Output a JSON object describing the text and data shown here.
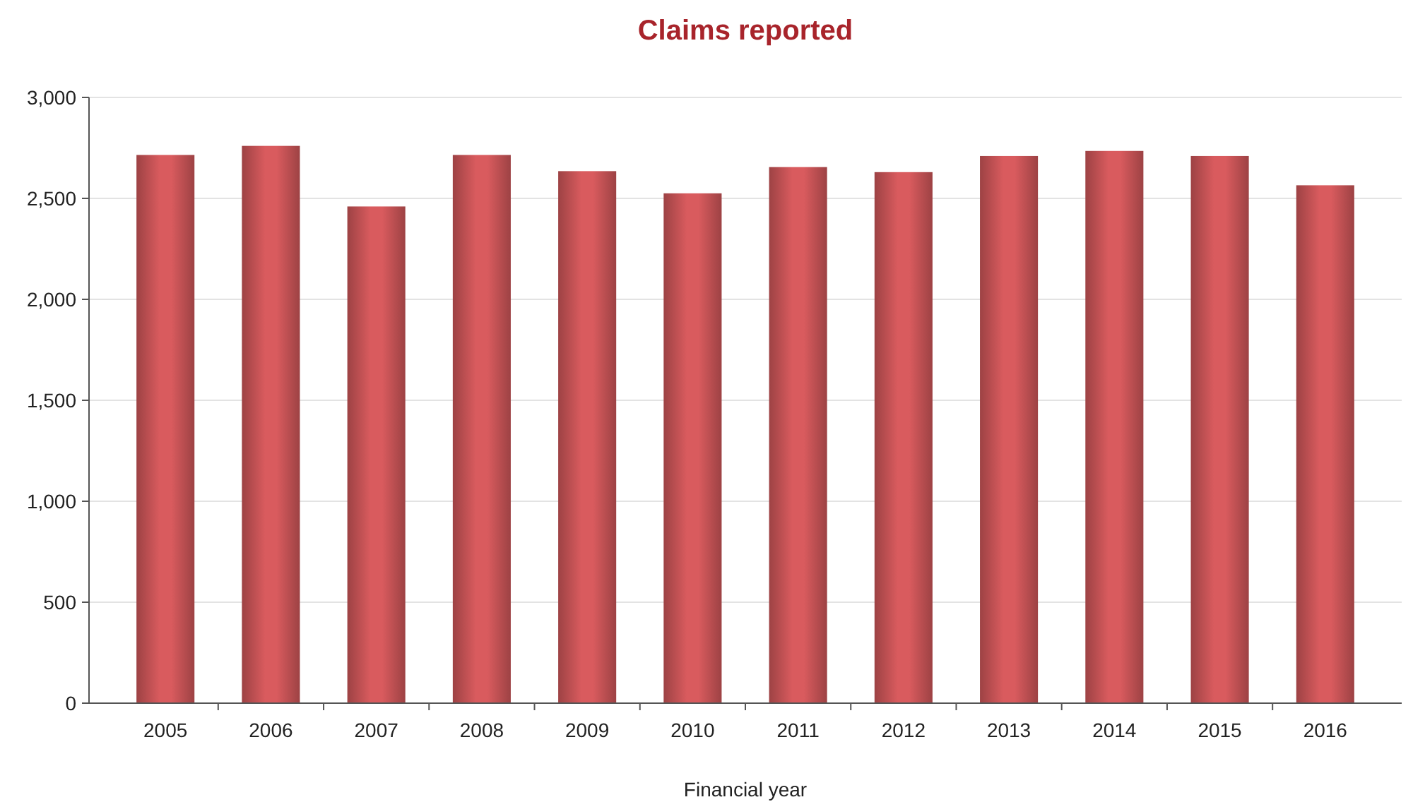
{
  "chart_data": {
    "type": "bar",
    "title": "Claims reported",
    "xlabel": "Financial year",
    "categories": [
      "2005",
      "2006",
      "2007",
      "2008",
      "2009",
      "2010",
      "2011",
      "2012",
      "2013",
      "2014",
      "2015",
      "2016"
    ],
    "values": [
      2715,
      2760,
      2460,
      2715,
      2635,
      2525,
      2655,
      2630,
      2710,
      2735,
      2710,
      2565
    ],
    "color": "#d95b5e",
    "ylim": [
      0,
      3000
    ],
    "yticks": [
      0,
      {
        "value": 500,
        "label": "500"
      },
      {
        "value": 1000,
        "label": "1,000"
      },
      {
        "value": 1500,
        "label": "1,500"
      },
      {
        "value": 2000,
        "label": "2,000"
      },
      {
        "value": 2500,
        "label": "2,500"
      },
      {
        "value": 3000,
        "label": "3,000"
      }
    ],
    "grid": "y"
  }
}
